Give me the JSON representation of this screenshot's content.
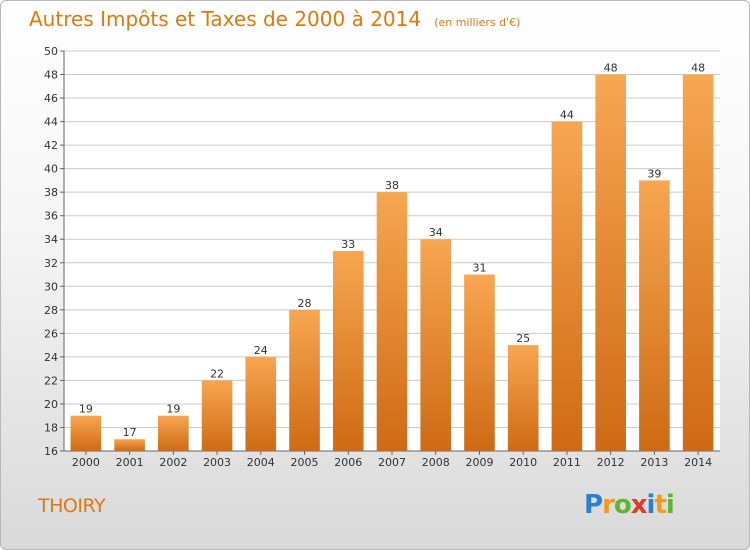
{
  "title": "Autres Impôts et Taxes de 2000 à 2014",
  "subtitle": "(en milliers d'€)",
  "commune": "THOIRY",
  "logo": {
    "text": "Proxiti",
    "letters": [
      {
        "ch": "P",
        "color": "#2a7fd4"
      },
      {
        "ch": "r",
        "color": "#f39a1a"
      },
      {
        "ch": "o",
        "color": "#5cb82e"
      },
      {
        "ch": "x",
        "color": "#e03a2a"
      },
      {
        "ch": "i",
        "color": "#2a7fd4"
      },
      {
        "ch": "t",
        "color": "#f39a1a"
      },
      {
        "ch": "i",
        "color": "#5cb82e"
      }
    ]
  },
  "colors": {
    "bar_top": "#f7a652",
    "bar_bottom": "#cf6a14",
    "title": "#e07810",
    "grid": "#cccccc"
  },
  "chart_data": {
    "type": "bar",
    "categories": [
      "2000",
      "2001",
      "2002",
      "2003",
      "2004",
      "2005",
      "2006",
      "2007",
      "2008",
      "2009",
      "2010",
      "2011",
      "2012",
      "2013",
      "2014"
    ],
    "values": [
      19,
      17,
      19,
      22,
      24,
      28,
      33,
      38,
      34,
      31,
      25,
      44,
      48,
      39,
      48
    ],
    "ylim": [
      16,
      50
    ],
    "yticks": [
      16,
      18,
      20,
      22,
      24,
      26,
      28,
      30,
      32,
      34,
      36,
      38,
      40,
      42,
      44,
      46,
      48,
      50
    ],
    "grid": true,
    "legend": "none"
  }
}
